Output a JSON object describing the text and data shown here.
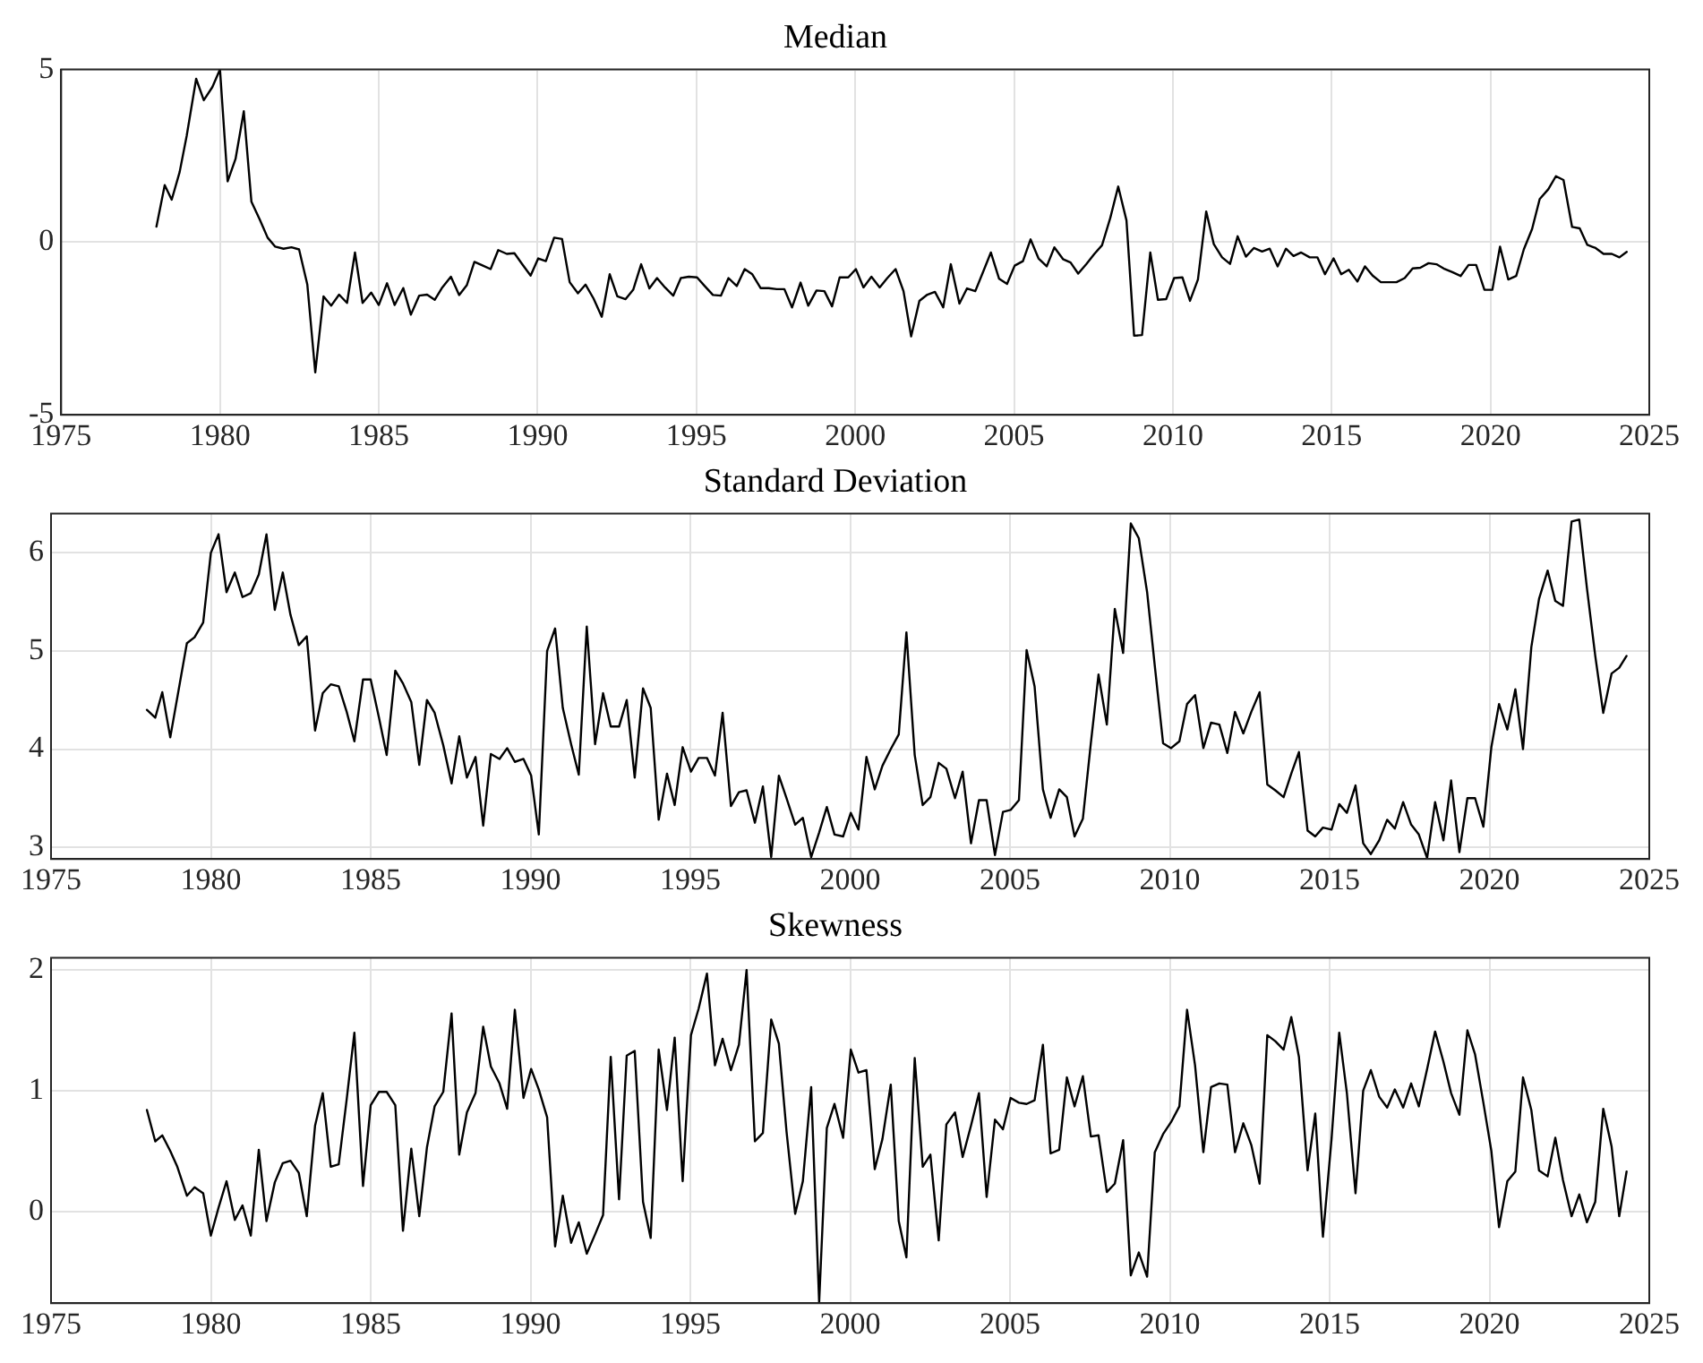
{
  "chart_data": [
    {
      "type": "line",
      "title": "Median",
      "color": "#000000",
      "grid": true,
      "xlim": [
        1975,
        2025
      ],
      "xticks": [
        1975,
        1980,
        1985,
        1990,
        1995,
        2000,
        2005,
        2010,
        2015,
        2020,
        2025
      ],
      "ylim": [
        -5,
        5
      ],
      "yticks": [
        -5,
        0,
        5
      ],
      "x": [
        1978.0,
        1978.26,
        1978.48,
        1978.73,
        1978.95,
        1979.25,
        1979.49,
        1979.76,
        1980.0,
        1980.24,
        1980.49,
        1980.75,
        1980.99,
        1981.25,
        1981.5,
        1981.74,
        1982.0,
        1982.25,
        1982.49,
        1982.75,
        1983.0,
        1983.26,
        1983.5,
        1983.75,
        1984.0,
        1984.25,
        1984.49,
        1984.76,
        1985.0,
        1985.26,
        1985.5,
        1985.77,
        1986.01,
        1986.27,
        1986.52,
        1986.76,
        1987.0,
        1987.27,
        1987.53,
        1987.77,
        1988.01,
        1988.28,
        1988.52,
        1988.76,
        1989.03,
        1989.27,
        1989.51,
        1989.78,
        1990.02,
        1990.26,
        1990.52,
        1990.77,
        1991.01,
        1991.27,
        1991.51,
        1991.76,
        1992.02,
        1992.27,
        1992.51,
        1992.77,
        1993.01,
        1993.26,
        1993.52,
        1993.76,
        1994.01,
        1994.27,
        1994.51,
        1994.76,
        1995.02,
        1995.26,
        1995.52,
        1995.77,
        1996.01,
        1996.27,
        1996.52,
        1996.76,
        1997.02,
        1997.27,
        1997.53,
        1997.77,
        1998.01,
        1998.28,
        1998.52,
        1998.78,
        1999.03,
        1999.27,
        1999.51,
        1999.78,
        2000.02,
        2000.26,
        2000.51,
        2000.77,
        2001.01,
        2001.27,
        2001.52,
        2001.76,
        2002.02,
        2002.27,
        2002.51,
        2002.77,
        2003.01,
        2003.28,
        2003.52,
        2003.78,
        2004.03,
        2004.27,
        2004.53,
        2004.78,
        2005.02,
        2005.28,
        2005.52,
        2005.77,
        2006.03,
        2006.27,
        2006.54,
        2006.78,
        2007.02,
        2007.28,
        2007.53,
        2007.77,
        2008.03,
        2008.28,
        2008.54,
        2008.78,
        2009.03,
        2009.29,
        2009.53,
        2009.79,
        2010.04,
        2010.3,
        2010.54,
        2010.79,
        2011.05,
        2011.29,
        2011.55,
        2011.8,
        2012.04,
        2012.3,
        2012.55,
        2012.81,
        2013.05,
        2013.3,
        2013.56,
        2013.8,
        2014.04,
        2014.31,
        2014.55,
        2014.79,
        2015.06,
        2015.3,
        2015.54,
        2015.81,
        2016.05,
        2016.29,
        2016.55,
        2017.04,
        2017.3,
        2017.55,
        2017.79,
        2018.05,
        2018.3,
        2018.56,
        2018.8,
        2019.06,
        2019.31,
        2019.55,
        2019.81,
        2020.06,
        2020.3,
        2020.56,
        2020.81,
        2021.05,
        2021.31,
        2021.55,
        2021.82,
        2022.06,
        2022.3,
        2022.57,
        2022.81,
        2023.05,
        2023.31,
        2023.56,
        2023.82,
        2024.06,
        2024.29
      ],
      "values": [
        0.45,
        1.65,
        1.23,
        2.03,
        3.07,
        4.73,
        4.11,
        4.49,
        5.0,
        1.76,
        2.41,
        3.79,
        1.17,
        0.66,
        0.13,
        -0.13,
        -0.19,
        -0.15,
        -0.21,
        -1.23,
        -3.77,
        -1.57,
        -1.84,
        -1.52,
        -1.76,
        -0.3,
        -1.76,
        -1.46,
        -1.82,
        -1.19,
        -1.82,
        -1.33,
        -2.1,
        -1.55,
        -1.52,
        -1.67,
        -1.31,
        -1.0,
        -1.53,
        -1.25,
        -0.57,
        -0.68,
        -0.78,
        -0.23,
        -0.34,
        -0.32,
        -0.63,
        -0.97,
        -0.47,
        -0.55,
        0.13,
        0.09,
        -1.16,
        -1.48,
        -1.23,
        -1.63,
        -2.16,
        -0.93,
        -1.57,
        -1.65,
        -1.38,
        -0.64,
        -1.34,
        -1.04,
        -1.31,
        -1.55,
        -1.04,
        -1.0,
        -1.02,
        -1.27,
        -1.53,
        -1.55,
        -1.04,
        -1.27,
        -0.78,
        -0.93,
        -1.33,
        -1.33,
        -1.36,
        -1.36,
        -1.89,
        -1.17,
        -1.84,
        -1.4,
        -1.42,
        -1.86,
        -1.02,
        -1.02,
        -0.78,
        -1.31,
        -1.0,
        -1.31,
        -1.04,
        -0.78,
        -1.42,
        -2.73,
        -1.7,
        -1.52,
        -1.44,
        -1.89,
        -0.64,
        -1.78,
        -1.34,
        -1.42,
        -0.85,
        -0.3,
        -1.06,
        -1.21,
        -0.68,
        -0.55,
        0.08,
        -0.47,
        -0.7,
        -0.15,
        -0.49,
        -0.59,
        -0.91,
        -0.63,
        -0.34,
        -0.09,
        0.7,
        1.61,
        0.63,
        -2.71,
        -2.69,
        -0.3,
        -1.67,
        -1.65,
        -1.04,
        -1.02,
        -1.7,
        -1.08,
        0.89,
        -0.06,
        -0.44,
        -0.63,
        0.17,
        -0.42,
        -0.17,
        -0.27,
        -0.19,
        -0.7,
        -0.19,
        -0.4,
        -0.3,
        -0.44,
        -0.44,
        -0.93,
        -0.47,
        -0.93,
        -0.8,
        -1.14,
        -0.7,
        -0.97,
        -1.16,
        -1.16,
        -1.04,
        -0.76,
        -0.74,
        -0.61,
        -0.64,
        -0.78,
        -0.87,
        -0.98,
        -0.66,
        -0.66,
        -1.38,
        -1.38,
        -0.13,
        -1.08,
        -0.98,
        -0.21,
        0.38,
        1.25,
        1.53,
        1.91,
        1.8,
        0.44,
        0.4,
        -0.08,
        -0.17,
        -0.34,
        -0.34,
        -0.44,
        -0.28
      ]
    },
    {
      "type": "line",
      "title": "Standard Deviation",
      "color": "#000000",
      "grid": true,
      "xlim": [
        1975,
        2025
      ],
      "xticks": [
        1975,
        1980,
        1985,
        1990,
        1995,
        2000,
        2005,
        2010,
        2015,
        2020,
        2025
      ],
      "ylim": [
        2.88,
        6.4
      ],
      "yticks": [
        3,
        4,
        5,
        6
      ],
      "x": [
        1978.0,
        1978.26,
        1978.48,
        1978.73,
        1979.25,
        1979.49,
        1979.76,
        1980.0,
        1980.24,
        1980.49,
        1980.75,
        1980.99,
        1981.25,
        1981.5,
        1981.74,
        1982.0,
        1982.25,
        1982.49,
        1982.75,
        1983.0,
        1983.26,
        1983.5,
        1983.75,
        1984.0,
        1984.25,
        1984.49,
        1984.76,
        1985.0,
        1985.26,
        1985.5,
        1985.77,
        1986.01,
        1986.27,
        1986.52,
        1986.76,
        1987.0,
        1987.27,
        1987.53,
        1987.77,
        1988.01,
        1988.28,
        1988.52,
        1988.76,
        1989.03,
        1989.27,
        1989.51,
        1989.78,
        1990.02,
        1990.26,
        1990.52,
        1990.77,
        1991.01,
        1991.27,
        1991.51,
        1991.76,
        1992.02,
        1992.27,
        1992.51,
        1992.77,
        1993.01,
        1993.26,
        1993.52,
        1993.76,
        1994.01,
        1994.27,
        1994.51,
        1994.76,
        1995.02,
        1995.26,
        1995.52,
        1995.77,
        1996.01,
        1996.27,
        1996.52,
        1996.76,
        1997.02,
        1997.27,
        1997.53,
        1997.77,
        1998.01,
        1998.28,
        1998.52,
        1998.78,
        1999.03,
        1999.27,
        1999.51,
        1999.78,
        2000.02,
        2000.26,
        2000.51,
        2000.77,
        2001.01,
        2001.27,
        2001.52,
        2001.76,
        2002.02,
        2002.27,
        2002.51,
        2002.77,
        2003.01,
        2003.28,
        2003.52,
        2003.78,
        2004.03,
        2004.27,
        2004.53,
        2004.78,
        2005.02,
        2005.28,
        2005.52,
        2005.77,
        2006.03,
        2006.27,
        2006.54,
        2006.78,
        2007.02,
        2007.28,
        2007.53,
        2007.77,
        2008.03,
        2008.28,
        2008.54,
        2008.78,
        2009.03,
        2009.29,
        2009.53,
        2009.79,
        2010.04,
        2010.3,
        2010.54,
        2010.79,
        2011.05,
        2011.29,
        2011.55,
        2011.8,
        2012.04,
        2012.3,
        2012.55,
        2012.81,
        2013.05,
        2013.3,
        2013.56,
        2013.8,
        2014.04,
        2014.31,
        2014.55,
        2014.79,
        2015.06,
        2015.3,
        2015.54,
        2015.81,
        2016.05,
        2016.29,
        2016.55,
        2016.8,
        2017.04,
        2017.3,
        2017.55,
        2017.79,
        2018.05,
        2018.3,
        2018.56,
        2018.8,
        2019.06,
        2019.31,
        2019.55,
        2019.81,
        2020.06,
        2020.3,
        2020.56,
        2020.81,
        2021.05,
        2021.31,
        2021.55,
        2021.82,
        2022.06,
        2022.3,
        2022.57,
        2022.81,
        2023.05,
        2023.31,
        2023.56,
        2023.82,
        2024.06,
        2024.29
      ],
      "values": [
        4.4,
        4.32,
        4.58,
        4.12,
        5.08,
        5.14,
        5.29,
        6.0,
        6.19,
        5.6,
        5.8,
        5.55,
        5.59,
        5.78,
        6.19,
        5.42,
        5.8,
        5.37,
        5.06,
        5.15,
        4.19,
        4.57,
        4.66,
        4.64,
        4.38,
        4.08,
        4.71,
        4.71,
        4.32,
        3.94,
        4.8,
        4.67,
        4.48,
        3.84,
        4.5,
        4.37,
        4.04,
        3.65,
        4.13,
        3.71,
        3.92,
        3.22,
        3.95,
        3.9,
        4.01,
        3.87,
        3.9,
        3.73,
        3.13,
        5.0,
        5.23,
        4.42,
        4.05,
        3.74,
        5.25,
        4.05,
        4.57,
        4.23,
        4.23,
        4.5,
        3.71,
        4.62,
        4.42,
        3.28,
        3.75,
        3.43,
        4.02,
        3.77,
        3.91,
        3.91,
        3.73,
        4.37,
        3.42,
        3.56,
        3.58,
        3.25,
        3.62,
        2.9,
        3.73,
        3.5,
        3.23,
        3.3,
        2.9,
        3.15,
        3.41,
        3.13,
        3.11,
        3.35,
        3.18,
        3.92,
        3.59,
        3.83,
        4.0,
        4.15,
        5.19,
        3.94,
        3.43,
        3.51,
        3.86,
        3.8,
        3.5,
        3.77,
        3.04,
        3.48,
        3.48,
        2.92,
        3.36,
        3.38,
        3.48,
        5.01,
        4.64,
        3.59,
        3.3,
        3.59,
        3.51,
        3.11,
        3.29,
        4.06,
        4.76,
        4.25,
        5.43,
        4.98,
        6.3,
        6.15,
        5.6,
        4.85,
        4.06,
        4.01,
        4.08,
        4.46,
        4.55,
        4.01,
        4.27,
        4.25,
        3.96,
        4.38,
        4.16,
        4.38,
        4.58,
        3.64,
        3.58,
        3.51,
        3.75,
        3.97,
        3.17,
        3.11,
        3.2,
        3.18,
        3.44,
        3.35,
        3.63,
        3.04,
        2.93,
        3.07,
        3.28,
        3.19,
        3.46,
        3.23,
        3.13,
        2.89,
        3.46,
        3.07,
        3.68,
        2.95,
        3.5,
        3.5,
        3.21,
        4.02,
        4.46,
        4.2,
        4.61,
        4.0,
        5.04,
        5.53,
        5.82,
        5.51,
        5.46,
        6.32,
        6.34,
        5.64,
        4.95,
        4.37,
        4.77,
        4.83,
        4.95
      ]
    },
    {
      "type": "line",
      "title": "Skewness",
      "color": "#000000",
      "grid": true,
      "xlim": [
        1975,
        2025
      ],
      "xticks": [
        1975,
        1980,
        1985,
        1990,
        1995,
        2000,
        2005,
        2010,
        2015,
        2020,
        2025
      ],
      "ylim": [
        -0.76,
        2.1
      ],
      "yticks": [
        0,
        1,
        2
      ],
      "x": [
        1978.0,
        1978.26,
        1978.48,
        1978.73,
        1978.95,
        1979.25,
        1979.49,
        1979.76,
        1980.0,
        1980.24,
        1980.49,
        1980.75,
        1980.99,
        1981.25,
        1981.5,
        1981.74,
        1982.0,
        1982.25,
        1982.49,
        1982.75,
        1983.0,
        1983.26,
        1983.5,
        1983.75,
        1984.0,
        1984.25,
        1984.49,
        1984.76,
        1985.0,
        1985.26,
        1985.5,
        1985.77,
        1986.01,
        1986.27,
        1986.52,
        1986.76,
        1987.0,
        1987.27,
        1987.53,
        1987.77,
        1988.01,
        1988.28,
        1988.52,
        1988.76,
        1989.03,
        1989.27,
        1989.51,
        1989.78,
        1990.02,
        1990.26,
        1990.52,
        1990.77,
        1991.01,
        1991.27,
        1991.51,
        1991.76,
        1992.02,
        1992.27,
        1992.51,
        1992.77,
        1993.01,
        1993.26,
        1993.52,
        1993.76,
        1994.01,
        1994.27,
        1994.51,
        1994.76,
        1995.02,
        1995.26,
        1995.52,
        1995.77,
        1996.01,
        1996.27,
        1996.52,
        1996.76,
        1997.02,
        1997.27,
        1997.53,
        1997.77,
        1998.01,
        1998.28,
        1998.52,
        1998.78,
        1999.03,
        1999.27,
        1999.51,
        1999.78,
        2000.02,
        2000.26,
        2000.51,
        2000.77,
        2001.01,
        2001.27,
        2001.52,
        2001.76,
        2002.02,
        2002.27,
        2002.51,
        2002.77,
        2003.01,
        2003.28,
        2003.52,
        2003.78,
        2004.03,
        2004.27,
        2004.53,
        2004.78,
        2005.02,
        2005.28,
        2005.52,
        2005.77,
        2006.03,
        2006.27,
        2006.54,
        2006.78,
        2007.02,
        2007.28,
        2007.53,
        2007.77,
        2008.03,
        2008.28,
        2008.54,
        2008.78,
        2009.03,
        2009.29,
        2009.53,
        2009.79,
        2010.04,
        2010.3,
        2010.54,
        2010.79,
        2011.05,
        2011.29,
        2011.55,
        2011.8,
        2012.04,
        2012.3,
        2012.55,
        2012.81,
        2013.05,
        2013.3,
        2013.56,
        2013.8,
        2014.04,
        2014.31,
        2014.55,
        2014.79,
        2015.06,
        2015.3,
        2015.54,
        2015.81,
        2016.05,
        2016.29,
        2016.55,
        2016.8,
        2017.04,
        2017.3,
        2017.55,
        2017.79,
        2018.05,
        2018.3,
        2018.56,
        2018.8,
        2019.06,
        2019.31,
        2019.55,
        2019.81,
        2020.06,
        2020.3,
        2020.56,
        2020.81,
        2021.05,
        2021.31,
        2021.55,
        2021.82,
        2022.06,
        2022.3,
        2022.57,
        2022.81,
        2023.05,
        2023.31,
        2023.56,
        2023.82,
        2024.06,
        2024.29
      ],
      "values": [
        0.84,
        0.58,
        0.63,
        0.5,
        0.37,
        0.13,
        0.2,
        0.15,
        -0.2,
        0.03,
        0.25,
        -0.07,
        0.05,
        -0.2,
        0.51,
        -0.08,
        0.24,
        0.4,
        0.42,
        0.32,
        -0.04,
        0.71,
        0.98,
        0.37,
        0.39,
        0.93,
        1.48,
        0.21,
        0.88,
        0.99,
        0.99,
        0.88,
        -0.16,
        0.52,
        -0.04,
        0.53,
        0.87,
        0.99,
        1.64,
        0.47,
        0.82,
        0.98,
        1.53,
        1.2,
        1.06,
        0.85,
        1.67,
        0.94,
        1.18,
        1.01,
        0.78,
        -0.29,
        0.13,
        -0.26,
        -0.09,
        -0.35,
        -0.19,
        -0.03,
        1.28,
        0.1,
        1.29,
        1.33,
        0.08,
        -0.22,
        1.34,
        0.84,
        1.44,
        0.25,
        1.46,
        1.68,
        1.97,
        1.21,
        1.43,
        1.17,
        1.38,
        2.0,
        0.58,
        0.65,
        1.59,
        1.39,
        0.66,
        -0.02,
        0.25,
        1.03,
        -0.75,
        0.69,
        0.89,
        0.61,
        1.34,
        1.15,
        1.17,
        0.35,
        0.6,
        1.05,
        -0.08,
        -0.38,
        1.27,
        0.37,
        0.47,
        -0.24,
        0.72,
        0.82,
        0.45,
        0.71,
        0.98,
        0.12,
        0.76,
        0.68,
        0.94,
        0.9,
        0.89,
        0.92,
        1.38,
        0.48,
        0.51,
        1.11,
        0.87,
        1.12,
        0.62,
        0.63,
        0.16,
        0.23,
        0.59,
        -0.53,
        -0.34,
        -0.54,
        0.49,
        0.64,
        0.74,
        0.87,
        1.67,
        1.21,
        0.49,
        1.03,
        1.06,
        1.05,
        0.49,
        0.73,
        0.55,
        0.23,
        1.46,
        1.41,
        1.34,
        1.61,
        1.28,
        0.34,
        0.81,
        -0.21,
        0.6,
        1.48,
        0.98,
        0.15,
        1.0,
        1.17,
        0.95,
        0.86,
        1.01,
        0.86,
        1.06,
        0.87,
        1.18,
        1.49,
        1.24,
        0.98,
        0.8,
        1.5,
        1.3,
        0.9,
        0.5,
        -0.13,
        0.25,
        0.33,
        1.11,
        0.84,
        0.34,
        0.29,
        0.61,
        0.26,
        -0.04,
        0.14,
        -0.09,
        0.08,
        0.85,
        0.54,
        -0.04,
        0.33
      ]
    }
  ]
}
